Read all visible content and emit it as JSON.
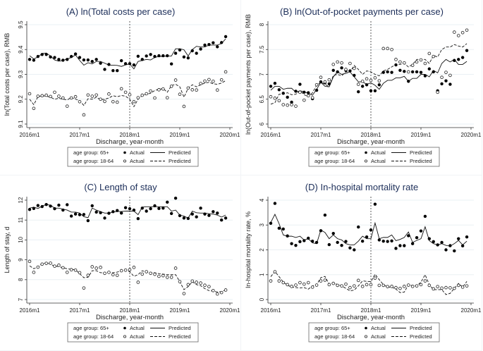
{
  "figure": {
    "x_tick_labels": [
      "2016m1",
      "2017m1",
      "2018m1",
      "2019m1",
      "2020m1"
    ],
    "xlabel": "Discharge, year-month",
    "intervention_label": "2018m1",
    "legend": {
      "row1_group": "age group: 65+",
      "row2_group": "age group: 18-64",
      "actual": "Actual",
      "predicted": "Predicted"
    },
    "colors": {
      "title": "#1c2e59",
      "marks": "#000000",
      "grid": "#eaf0f4"
    }
  },
  "chart_data": [
    {
      "type": "scatter",
      "title": "(A) ln(Total costs per case)",
      "xlabel": "Discharge, year-month",
      "ylabel": "ln(Total costs per case), RMB",
      "ylim": [
        9.1,
        9.5
      ],
      "yticks": [
        9.1,
        9.2,
        9.3,
        9.4,
        9.5
      ],
      "ytick_labels": [
        "9.1",
        "9.2",
        "9.3",
        "9.4",
        "9.5"
      ],
      "x": "months 0..47 from 2016m1 to 2019m12",
      "series": [
        {
          "name": "age group: 65+ Actual",
          "style": "filled-dot",
          "values": [
            9.36,
            9.357,
            9.372,
            9.38,
            9.38,
            9.37,
            9.368,
            9.36,
            9.357,
            9.36,
            9.372,
            9.382,
            9.368,
            9.358,
            9.358,
            9.352,
            9.36,
            9.345,
            9.32,
            9.34,
            9.315,
            9.315,
            9.355,
            9.343,
            9.343,
            9.338,
            9.373,
            9.36,
            9.374,
            9.38,
            9.372,
            9.375,
            9.375,
            9.375,
            9.342,
            9.385,
            9.398,
            9.37,
            9.366,
            9.395,
            9.385,
            9.402,
            9.418,
            9.42,
            9.427,
            9.411,
            9.428,
            9.452
          ]
        },
        {
          "name": "age group: 65+ Predicted",
          "style": "solid",
          "values": [
            9.375,
            9.362,
            9.37,
            9.384,
            9.386,
            9.374,
            9.358,
            9.353,
            9.356,
            9.362,
            9.368,
            9.378,
            9.356,
            9.337,
            9.347,
            9.342,
            9.352,
            9.352,
            9.345,
            9.337,
            9.337,
            9.336,
            9.332,
            9.338,
            9.342,
            9.322,
            9.352,
            9.356,
            9.36,
            9.358,
            9.368,
            9.372,
            9.372,
            9.374,
            9.374,
            9.403,
            9.403,
            9.399,
            9.374,
            9.4,
            9.413,
            9.41,
            9.41,
            9.418,
            9.418,
            9.418,
            9.424,
            9.443
          ]
        },
        {
          "name": "age group: 18-64 Actual",
          "style": "hollow-dot",
          "values": [
            9.222,
            9.163,
            9.212,
            9.214,
            9.216,
            9.211,
            9.228,
            9.212,
            9.205,
            9.172,
            9.205,
            9.21,
            9.19,
            9.137,
            9.217,
            9.212,
            9.217,
            9.2,
            9.191,
            9.221,
            9.19,
            9.188,
            9.242,
            9.228,
            9.218,
            9.19,
            9.206,
            9.216,
            9.222,
            9.233,
            9.205,
            9.238,
            9.241,
            9.206,
            9.252,
            9.277,
            9.22,
            9.171,
            9.245,
            9.238,
            9.237,
            9.263,
            9.273,
            9.279,
            9.272,
            9.237,
            9.278,
            9.31
          ]
        },
        {
          "name": "age group: 18-64 Predicted",
          "style": "dashed",
          "values": [
            9.2,
            9.178,
            9.21,
            9.214,
            9.212,
            9.208,
            9.2,
            9.204,
            9.2,
            9.197,
            9.207,
            9.2,
            9.194,
            9.175,
            9.202,
            9.2,
            9.208,
            9.198,
            9.2,
            9.205,
            9.214,
            9.21,
            9.215,
            9.212,
            9.2,
            9.17,
            9.2,
            9.215,
            9.22,
            9.224,
            9.235,
            9.24,
            9.243,
            9.228,
            9.255,
            9.26,
            9.25,
            9.208,
            9.244,
            9.258,
            9.25,
            9.258,
            9.265,
            9.268,
            9.262,
            9.26,
            9.265,
            9.275
          ]
        }
      ]
    },
    {
      "type": "scatter",
      "title": "(B) ln(Out-of-pocket payments per case)",
      "xlabel": "Discharge, year-month",
      "ylabel": "ln(Out-of-pocket payments per case), RMB",
      "ylim": [
        6,
        8
      ],
      "yticks": [
        6,
        6.5,
        7,
        7.5,
        8
      ],
      "ytick_labels": [
        "6",
        "6.5",
        "7",
        "7.5",
        "8"
      ],
      "x": "months 0..47 from 2016m1 to 2019m12",
      "series": [
        {
          "name": "age group: 65+ Actual",
          "style": "filled-dot",
          "values": [
            6.76,
            6.82,
            6.69,
            6.62,
            6.54,
            6.44,
            6.66,
            6.8,
            6.64,
            6.63,
            6.51,
            6.68,
            6.85,
            6.83,
            6.81,
            7.08,
            7.05,
            7.13,
            7.08,
            7.07,
            6.98,
            6.65,
            6.76,
            6.79,
            6.67,
            6.67,
            6.79,
            7.04,
            7.05,
            7.04,
            7.19,
            7.08,
            7.06,
            6.86,
            7.05,
            7.05,
            7.04,
            6.97,
            7.11,
            7.05,
            6.67,
            6.81,
            6.87,
            6.8,
            7.28,
            7.3,
            7.34,
            7.48
          ]
        },
        {
          "name": "age group: 65+ Predicted",
          "style": "solid",
          "values": [
            6.68,
            6.76,
            6.76,
            6.7,
            6.72,
            6.72,
            6.64,
            6.67,
            6.65,
            6.62,
            6.58,
            6.7,
            6.84,
            6.76,
            6.75,
            6.95,
            7.05,
            7.0,
            7.02,
            7.05,
            6.95,
            6.85,
            6.85,
            6.8,
            6.83,
            6.78,
            6.7,
            6.82,
            6.88,
            6.88,
            6.93,
            6.93,
            6.96,
            6.86,
            6.92,
            6.92,
            7.0,
            7.0,
            6.95,
            7.08,
            7.03,
            7.22,
            7.3,
            7.25,
            7.3,
            7.2,
            7.2,
            7.26
          ]
        },
        {
          "name": "age group: 18-64 Actual",
          "style": "hollow-dot",
          "values": [
            6.55,
            6.52,
            6.47,
            6.39,
            6.38,
            6.39,
            6.36,
            6.64,
            6.48,
            6.57,
            6.53,
            6.79,
            6.94,
            6.85,
            6.89,
            7.2,
            7.25,
            7.23,
            7.1,
            7.22,
            7.12,
            6.8,
            6.86,
            6.91,
            6.88,
            6.93,
            6.87,
            7.52,
            7.52,
            7.5,
            7.3,
            7.25,
            7.23,
            7.05,
            7.18,
            7.25,
            7.29,
            7.22,
            7.42,
            7.36,
            6.64,
            6.94,
            7.04,
            6.98,
            7.85,
            7.78,
            7.84,
            7.89
          ]
        },
        {
          "name": "age group: 18-64 Predicted",
          "style": "dashed",
          "values": [
            6.4,
            6.43,
            6.6,
            6.6,
            6.63,
            6.59,
            6.6,
            6.67,
            6.59,
            6.55,
            6.63,
            6.78,
            6.84,
            6.8,
            6.75,
            6.98,
            7.0,
            6.97,
            7.05,
            7.05,
            7.18,
            7.1,
            7.0,
            7.07,
            7.05,
            7.0,
            6.97,
            7.07,
            7.1,
            7.15,
            7.2,
            7.2,
            7.22,
            7.15,
            7.2,
            7.3,
            7.3,
            7.3,
            7.22,
            7.38,
            7.35,
            7.5,
            7.55,
            7.55,
            7.6,
            7.57,
            7.55,
            7.62
          ]
        }
      ]
    },
    {
      "type": "scatter",
      "title": "(C) Length of stay",
      "xlabel": "Discharge, year-month",
      "ylabel": "Length of stay, d",
      "ylim": [
        7,
        12
      ],
      "yticks": [
        7,
        8,
        9,
        10,
        11,
        12
      ],
      "ytick_labels": [
        "7",
        "8",
        "9",
        "10",
        "11",
        "12"
      ],
      "x": "months 0..47 from 2016m1 to 2019m12",
      "series": [
        {
          "name": "age group: 65+ Actual",
          "style": "filled-dot",
          "values": [
            11.53,
            11.58,
            11.73,
            11.68,
            11.78,
            11.7,
            11.57,
            11.75,
            11.5,
            11.77,
            11.2,
            11.3,
            11.27,
            11.28,
            10.97,
            11.72,
            11.4,
            11.37,
            11.1,
            11.34,
            11.42,
            11.48,
            11.35,
            11.62,
            11.57,
            11.5,
            11.07,
            11.6,
            11.45,
            11.57,
            11.72,
            11.58,
            11.6,
            11.9,
            11.33,
            12.1,
            11.22,
            11.1,
            11.08,
            11.3,
            11.16,
            11.6,
            11.3,
            11.23,
            11.42,
            11.35,
            11.0,
            11.1
          ]
        },
        {
          "name": "age group: 65+ Predicted",
          "style": "solid",
          "values": [
            11.6,
            11.65,
            11.58,
            11.7,
            11.78,
            11.75,
            11.6,
            11.6,
            11.55,
            11.5,
            11.4,
            11.4,
            11.35,
            11.17,
            11.12,
            11.6,
            11.5,
            11.42,
            11.35,
            11.35,
            11.4,
            11.43,
            11.43,
            11.45,
            11.45,
            11.45,
            11.27,
            11.65,
            11.67,
            11.67,
            11.67,
            11.67,
            11.67,
            11.67,
            11.45,
            11.5,
            11.25,
            11.2,
            11.1,
            11.45,
            11.37,
            11.35,
            11.35,
            11.32,
            11.3,
            11.25,
            11.15,
            11.25
          ]
        },
        {
          "name": "age group: 18-64 Actual",
          "style": "hollow-dot",
          "values": [
            8.92,
            8.37,
            8.63,
            8.78,
            8.82,
            8.83,
            8.68,
            8.73,
            8.6,
            8.37,
            8.5,
            8.48,
            8.35,
            7.58,
            8.22,
            8.65,
            8.58,
            8.62,
            8.32,
            8.37,
            8.25,
            8.22,
            8.45,
            8.48,
            8.5,
            8.62,
            7.87,
            8.28,
            8.4,
            8.32,
            8.27,
            8.17,
            8.2,
            8.12,
            8.12,
            8.58,
            7.9,
            7.3,
            7.75,
            7.93,
            7.87,
            7.83,
            7.72,
            7.65,
            7.45,
            7.28,
            7.35,
            7.48
          ]
        },
        {
          "name": "age group: 18-64 Predicted",
          "style": "dashed",
          "values": [
            8.7,
            8.55,
            8.65,
            8.8,
            8.85,
            8.78,
            8.68,
            8.66,
            8.6,
            8.55,
            8.52,
            8.5,
            8.3,
            8.1,
            8.12,
            8.45,
            8.45,
            8.35,
            8.35,
            8.35,
            8.35,
            8.38,
            8.45,
            8.48,
            8.4,
            8.17,
            8.25,
            8.45,
            8.38,
            8.35,
            8.35,
            8.3,
            8.28,
            8.25,
            8.25,
            8.25,
            7.9,
            7.5,
            7.65,
            7.9,
            7.75,
            7.7,
            7.55,
            7.45,
            7.42,
            7.38,
            7.4,
            7.48
          ]
        }
      ]
    },
    {
      "type": "scatter",
      "title": "(D) In-hospital mortality rate",
      "xlabel": "Discharge, year-month",
      "ylabel": "In-hospital mortality rate, %",
      "ylim": [
        0,
        4
      ],
      "yticks": [
        0,
        1,
        2,
        3,
        4
      ],
      "ytick_labels": [
        "0",
        "1",
        "2",
        "3",
        "4"
      ],
      "x": "months 0..47 from 2016m1 to 2019m12",
      "series": [
        {
          "name": "age group: 65+ Actual",
          "style": "filled-dot",
          "values": [
            3.07,
            3.87,
            2.87,
            2.84,
            2.56,
            2.25,
            2.18,
            2.33,
            2.37,
            2.47,
            2.35,
            2.3,
            2.77,
            3.4,
            2.21,
            2.66,
            2.3,
            2.18,
            2.34,
            2.08,
            2.0,
            2.92,
            2.35,
            2.52,
            2.8,
            3.84,
            2.4,
            2.35,
            2.34,
            2.36,
            2.06,
            2.17,
            2.17,
            2.57,
            2.25,
            2.49,
            2.76,
            3.35,
            2.45,
            2.33,
            2.2,
            2.3,
            2.0,
            2.17,
            1.96,
            2.45,
            2.16,
            2.52
          ]
        },
        {
          "name": "age group: 65+ Predicted",
          "style": "solid",
          "values": [
            3.1,
            3.43,
            3.05,
            2.6,
            2.55,
            2.55,
            2.5,
            2.55,
            2.4,
            2.45,
            2.28,
            2.25,
            2.8,
            2.7,
            2.45,
            2.6,
            2.45,
            2.4,
            2.25,
            2.2,
            2.2,
            2.35,
            2.55,
            2.45,
            2.45,
            3.08,
            2.45,
            2.5,
            2.5,
            2.6,
            2.37,
            2.42,
            2.5,
            2.72,
            2.3,
            2.38,
            2.45,
            2.93,
            2.37,
            2.25,
            2.2,
            2.25,
            2.18,
            2.15,
            2.25,
            2.38,
            2.2,
            2.35
          ]
        },
        {
          "name": "age group: 18-64 Actual",
          "style": "hollow-dot",
          "values": [
            0.75,
            1.12,
            0.75,
            0.68,
            0.6,
            0.53,
            0.58,
            0.68,
            0.62,
            0.68,
            0.5,
            0.58,
            0.75,
            0.78,
            0.6,
            0.65,
            0.57,
            0.55,
            0.62,
            0.48,
            0.55,
            0.77,
            0.53,
            0.6,
            0.6,
            0.86,
            0.57,
            0.57,
            0.52,
            0.53,
            0.48,
            0.45,
            0.53,
            0.58,
            0.53,
            0.55,
            0.6,
            0.75,
            0.57,
            0.43,
            0.52,
            0.46,
            0.48,
            0.47,
            0.45,
            0.57,
            0.5,
            0.55
          ]
        },
        {
          "name": "age group: 18-64 Predicted",
          "style": "dashed",
          "values": [
            0.92,
            1.13,
            0.92,
            0.7,
            0.58,
            0.5,
            0.48,
            0.47,
            0.48,
            0.42,
            0.55,
            0.6,
            0.88,
            0.93,
            0.62,
            0.67,
            0.6,
            0.55,
            0.45,
            0.35,
            0.38,
            0.55,
            0.75,
            0.73,
            0.72,
            1.02,
            0.8,
            0.6,
            0.5,
            0.5,
            0.42,
            0.28,
            0.3,
            0.6,
            0.55,
            0.55,
            0.7,
            1.0,
            0.6,
            0.4,
            0.4,
            0.4,
            0.2,
            0.25,
            0.45,
            0.65,
            0.5,
            0.73
          ]
        }
      ]
    }
  ]
}
